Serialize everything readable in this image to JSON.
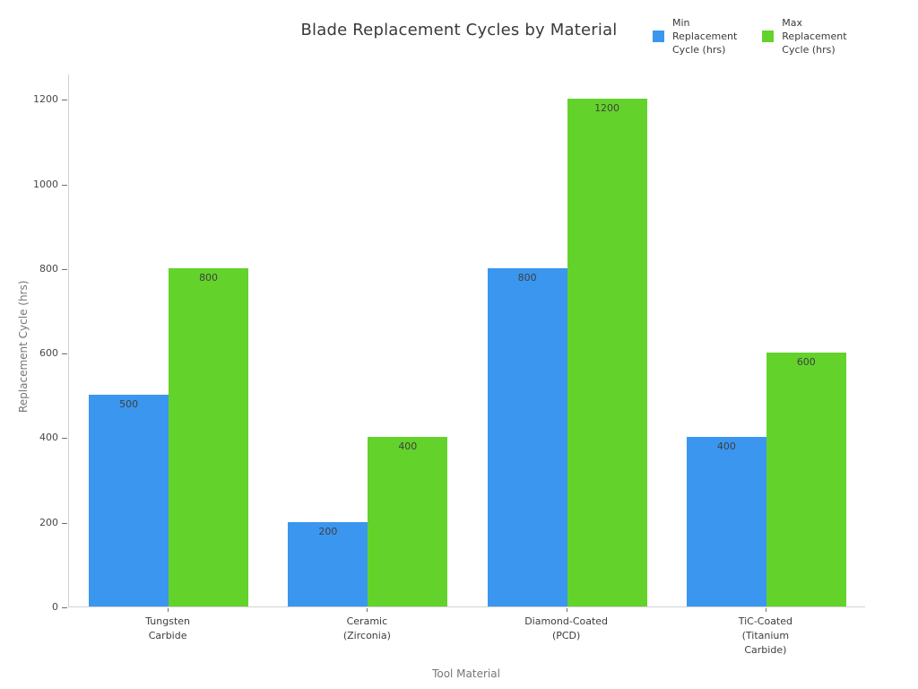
{
  "title": "Blade Replacement Cycles by Material",
  "legend": {
    "items": [
      {
        "name": "min-replacement-cycle",
        "label": "Min\nReplacement\nCycle (hrs)",
        "color": "#3b96f0"
      },
      {
        "name": "max-replacement-cycle",
        "label": "Max\nReplacement\nCycle (hrs)",
        "color": "#63d32c"
      }
    ]
  },
  "chart_data": {
    "type": "bar",
    "title": "Blade Replacement Cycles by Material",
    "xlabel": "Tool Material",
    "ylabel": "Replacement Cycle (hrs)",
    "categories": [
      "Tungsten\nCarbide",
      "Ceramic\n(Zirconia)",
      "Diamond-Coated\n(PCD)",
      "TiC-Coated\n(Titanium\nCarbide)"
    ],
    "series": [
      {
        "name": "Min Replacement Cycle (hrs)",
        "color": "#3b96f0",
        "values": [
          500,
          200,
          800,
          400
        ]
      },
      {
        "name": "Max Replacement Cycle (hrs)",
        "color": "#63d32c",
        "values": [
          800,
          400,
          1200,
          600
        ]
      }
    ],
    "bar_value_labels": [
      [
        500,
        200,
        800,
        400
      ],
      [
        800,
        400,
        1200,
        600
      ]
    ],
    "ylim": [
      0,
      1260
    ],
    "yticks": [
      0,
      200,
      400,
      600,
      800,
      1000,
      1200
    ],
    "grid": false,
    "legend_position": "top-right",
    "bar_label_position": "inside-top"
  }
}
